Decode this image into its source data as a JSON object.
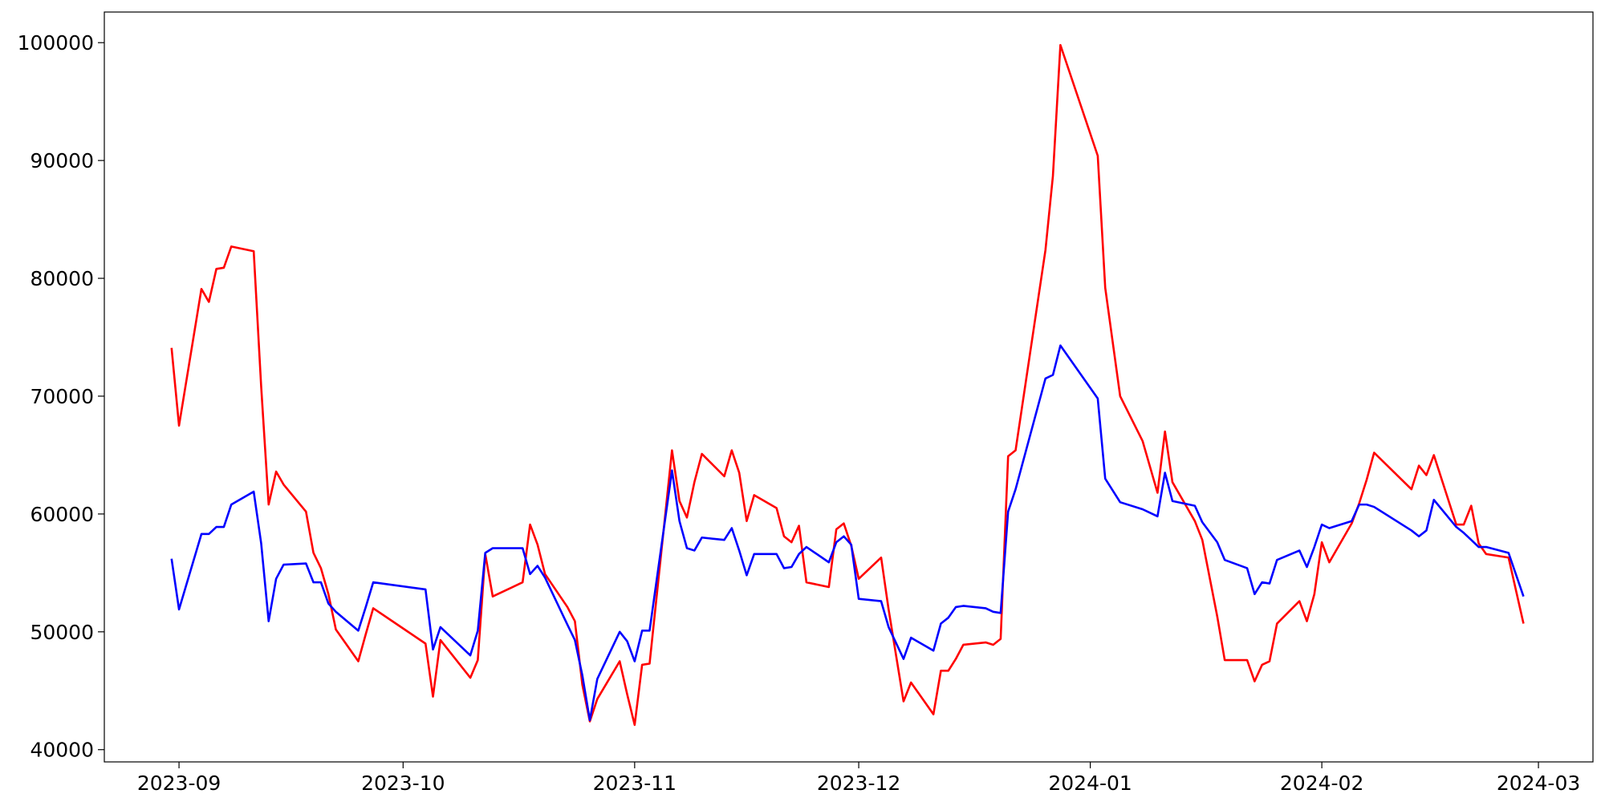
{
  "chart_data": {
    "type": "line",
    "x": [
      -1,
      0,
      3,
      4,
      5,
      6,
      7,
      10,
      11,
      12,
      13,
      14,
      17,
      18,
      19,
      20,
      21,
      24,
      25,
      26,
      33,
      34,
      35,
      39,
      40,
      41,
      42,
      46,
      47,
      48,
      49,
      52,
      53,
      54,
      55,
      56,
      59,
      60,
      61,
      62,
      63,
      66,
      67,
      68,
      69,
      70,
      73,
      74,
      75,
      76,
      77,
      80,
      81,
      82,
      83,
      84,
      87,
      88,
      89,
      90,
      91,
      94,
      95,
      97,
      98,
      101,
      102,
      103,
      104,
      105,
      108,
      109,
      110,
      111,
      112,
      116,
      117,
      118,
      123,
      124,
      126,
      129,
      131,
      132,
      133,
      136,
      137,
      139,
      140,
      143,
      144,
      145,
      146,
      147,
      150,
      151,
      152,
      153,
      154,
      157,
      158,
      159,
      160,
      165,
      166,
      167,
      168,
      171,
      172,
      173,
      174,
      175,
      178,
      180
    ],
    "series": [
      {
        "color": "#ff0000",
        "values": [
          74100,
          67500,
          79100,
          78000,
          80800,
          80900,
          82700,
          82300,
          70800,
          60800,
          63600,
          62500,
          60200,
          56700,
          55400,
          53200,
          50200,
          47500,
          49800,
          52000,
          49000,
          44500,
          49300,
          46100,
          47600,
          56600,
          53000,
          54200,
          59100,
          57400,
          54900,
          52100,
          50900,
          45500,
          42400,
          44300,
          47500,
          44700,
          42100,
          47200,
          47300,
          65400,
          61100,
          59700,
          62700,
          65100,
          63200,
          65400,
          63500,
          59400,
          61600,
          60500,
          58100,
          57600,
          59000,
          54200,
          53800,
          58700,
          59200,
          57300,
          54500,
          56300,
          51900,
          44100,
          45700,
          43000,
          46700,
          46700,
          47700,
          48900,
          49100,
          48900,
          49400,
          64900,
          65400,
          82400,
          88700,
          99800,
          90400,
          79200,
          70000,
          66200,
          61800,
          67000,
          62700,
          59400,
          57800,
          51300,
          47600,
          47600,
          45800,
          47200,
          47500,
          50700,
          52600,
          50900,
          53200,
          57600,
          55900,
          59200,
          60900,
          62900,
          65200,
          62100,
          64100,
          63300,
          65000,
          59100,
          59100,
          60700,
          57500,
          56600,
          56300,
          50700
        ]
      },
      {
        "color": "#0000ff",
        "values": [
          56200,
          51900,
          58300,
          58300,
          58900,
          58900,
          60800,
          61900,
          57500,
          50900,
          54500,
          55700,
          55800,
          54200,
          54200,
          52400,
          51700,
          50100,
          52100,
          54200,
          53600,
          48500,
          50400,
          48000,
          50100,
          56700,
          57100,
          57100,
          54900,
          55600,
          54600,
          50600,
          49300,
          46300,
          42500,
          46000,
          50000,
          49200,
          47500,
          50100,
          50100,
          63700,
          59400,
          57100,
          56900,
          58000,
          57800,
          58800,
          56900,
          54800,
          56600,
          56600,
          55400,
          55500,
          56600,
          57200,
          55900,
          57600,
          58100,
          57400,
          52800,
          52600,
          50400,
          47700,
          49500,
          48400,
          50700,
          51200,
          52100,
          52200,
          52000,
          51700,
          51600,
          60200,
          62100,
          71500,
          71800,
          74300,
          69800,
          63000,
          61000,
          60400,
          59800,
          63500,
          61100,
          60700,
          59300,
          57600,
          56100,
          55400,
          53200,
          54200,
          54100,
          56100,
          56900,
          55500,
          57200,
          59100,
          58800,
          59400,
          60800,
          60800,
          60600,
          58600,
          58100,
          58600,
          61200,
          58900,
          58400,
          57800,
          57200,
          57200,
          56700,
          53000
        ]
      }
    ],
    "xlim": [
      -10,
      189.3
    ],
    "xticks": [
      {
        "value": 0,
        "label": "2023-09"
      },
      {
        "value": 30,
        "label": "2023-10"
      },
      {
        "value": 61,
        "label": "2023-11"
      },
      {
        "value": 91,
        "label": "2023-12"
      },
      {
        "value": 122,
        "label": "2024-01"
      },
      {
        "value": 153,
        "label": "2024-02"
      },
      {
        "value": 182,
        "label": "2024-03"
      }
    ],
    "ylim": [
      38960,
      102600
    ],
    "yticks": [
      40000,
      50000,
      60000,
      70000,
      80000,
      90000,
      100000
    ]
  }
}
